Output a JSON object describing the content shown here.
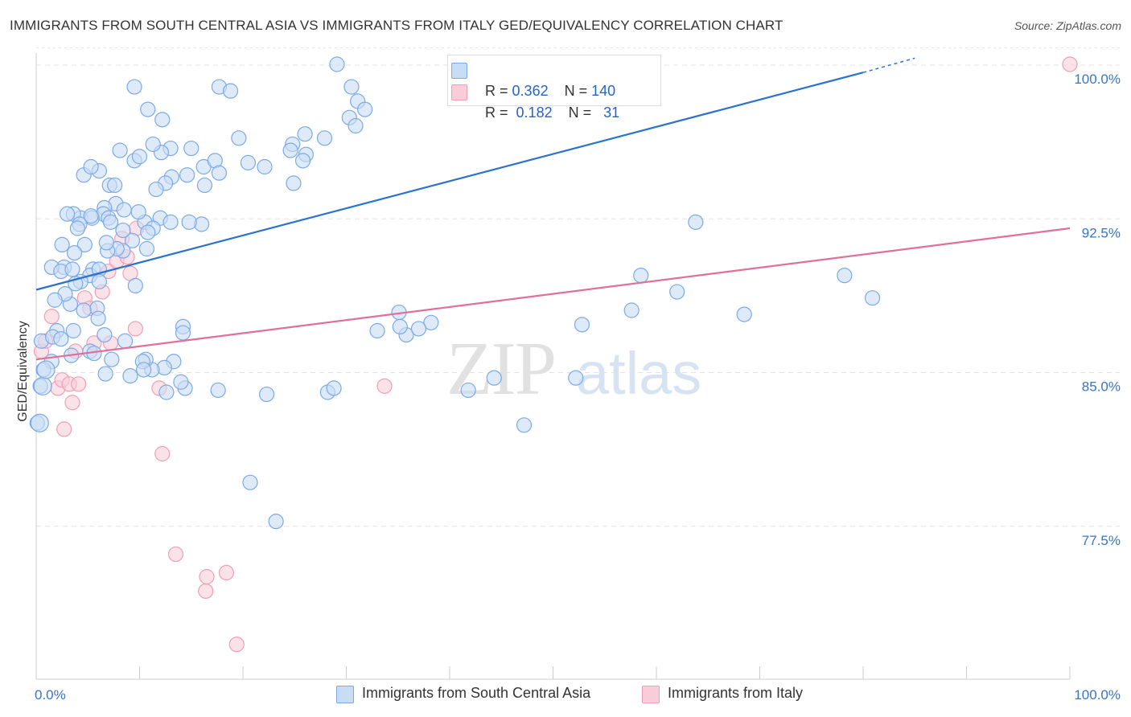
{
  "title": "IMMIGRANTS FROM SOUTH CENTRAL ASIA VS IMMIGRANTS FROM ITALY GED/EQUIVALENCY CORRELATION CHART",
  "source": "Source: ZipAtlas.com",
  "colors": {
    "blue_fill": "#c9dcf5",
    "blue_stroke": "#7aaae6",
    "blue_line": "#2a72cf",
    "pink_fill": "#f8cdd9",
    "pink_stroke": "#ee9fb6",
    "pink_line": "#e0709a",
    "axis_text": "#3a73c6",
    "grid": "#e3e3e3"
  },
  "legend": {
    "row1": {
      "r_label": "R =",
      "r_value": "0.362",
      "n_label": "N =",
      "n_value": "140"
    },
    "row2": {
      "r_label": "R =",
      "r_value": "0.182",
      "n_label": "N =",
      "n_value": "31"
    }
  },
  "bottom_legend": {
    "series1": "Immigrants from South Central Asia",
    "series2": "Immigrants from Italy"
  },
  "chart_data": {
    "type": "scatter",
    "xlabel": "",
    "ylabel": "GED/Equivalency",
    "xlim": [
      0,
      100
    ],
    "ylim": [
      71.5,
      100.8
    ],
    "x_tick_labels": [
      "0.0%",
      "100.0%"
    ],
    "y_ticks": [
      77.5,
      85.0,
      92.5,
      100.0
    ],
    "y_tick_labels": [
      "77.5%",
      "85.0%",
      "92.5%",
      "100.0%"
    ],
    "grid": true,
    "legend_position": "top-center",
    "watermark": "ZIPatlas",
    "series": [
      {
        "name": "Immigrants from South Central Asia",
        "R": 0.362,
        "N": 140,
        "trend": {
          "x": [
            0,
            80
          ],
          "y": [
            89.0,
            99.6
          ],
          "dashed_to": {
            "x": 85,
            "y": 100.3
          }
        },
        "points": [
          [
            29.1,
            100.0
          ],
          [
            30.5,
            98.9
          ],
          [
            31.1,
            98.2
          ],
          [
            31.8,
            97.8
          ],
          [
            30.3,
            97.4
          ],
          [
            30.9,
            97.0
          ],
          [
            26.0,
            96.6
          ],
          [
            27.9,
            96.4
          ],
          [
            24.8,
            96.1
          ],
          [
            26.1,
            95.6
          ],
          [
            25.8,
            95.3
          ],
          [
            17.7,
            98.9
          ],
          [
            18.8,
            98.7
          ],
          [
            19.6,
            96.4
          ],
          [
            20.5,
            95.2
          ],
          [
            22.1,
            95.0
          ],
          [
            24.6,
            95.8
          ],
          [
            24.9,
            94.2
          ],
          [
            9.5,
            98.9
          ],
          [
            10.8,
            97.8
          ],
          [
            12.2,
            97.3
          ],
          [
            13.0,
            95.9
          ],
          [
            12.1,
            95.7
          ],
          [
            15.0,
            95.9
          ],
          [
            14.6,
            94.6
          ],
          [
            16.2,
            95.0
          ],
          [
            17.3,
            95.3
          ],
          [
            17.7,
            94.7
          ],
          [
            16.3,
            94.1
          ],
          [
            16.0,
            92.2
          ],
          [
            8.1,
            95.8
          ],
          [
            9.5,
            95.3
          ],
          [
            10.0,
            95.5
          ],
          [
            11.3,
            96.1
          ],
          [
            13.1,
            94.5
          ],
          [
            12.5,
            94.2
          ],
          [
            11.6,
            93.9
          ],
          [
            12.0,
            92.5
          ],
          [
            10.5,
            92.3
          ],
          [
            11.3,
            92.0
          ],
          [
            10.8,
            91.8
          ],
          [
            13.0,
            92.3
          ],
          [
            14.8,
            92.3
          ],
          [
            7.1,
            94.1
          ],
          [
            7.6,
            94.1
          ],
          [
            6.1,
            94.8
          ],
          [
            4.6,
            94.6
          ],
          [
            5.3,
            95.0
          ],
          [
            7.7,
            93.2
          ],
          [
            6.6,
            93.0
          ],
          [
            6.5,
            92.7
          ],
          [
            7.0,
            92.5
          ],
          [
            7.2,
            92.3
          ],
          [
            8.5,
            92.9
          ],
          [
            9.9,
            92.8
          ],
          [
            4.3,
            92.5
          ],
          [
            5.4,
            92.5
          ],
          [
            5.3,
            92.6
          ],
          [
            3.6,
            92.7
          ],
          [
            3.0,
            92.7
          ],
          [
            4.2,
            92.2
          ],
          [
            4.0,
            92.0
          ],
          [
            9.3,
            91.4
          ],
          [
            10.7,
            91.0
          ],
          [
            8.4,
            90.9
          ],
          [
            7.8,
            91.0
          ],
          [
            5.5,
            90.0
          ],
          [
            6.9,
            90.9
          ],
          [
            4.7,
            91.2
          ],
          [
            5.2,
            89.7
          ],
          [
            2.7,
            90.1
          ],
          [
            6.1,
            90.0
          ],
          [
            6.1,
            89.4
          ],
          [
            8.4,
            91.9
          ],
          [
            6.8,
            91.3
          ],
          [
            4.3,
            89.4
          ],
          [
            3.8,
            89.3
          ],
          [
            5.2,
            86.0
          ],
          [
            5.6,
            85.9
          ],
          [
            6.7,
            84.9
          ],
          [
            5.9,
            88.1
          ],
          [
            4.6,
            88.0
          ],
          [
            3.3,
            88.3
          ],
          [
            2.8,
            88.8
          ],
          [
            2.0,
            87.0
          ],
          [
            0.5,
            86.5
          ],
          [
            1.6,
            86.7
          ],
          [
            1.8,
            88.5
          ],
          [
            1.5,
            90.1
          ],
          [
            2.5,
            91.2
          ],
          [
            2.4,
            89.9
          ],
          [
            3.5,
            90.0
          ],
          [
            3.7,
            90.8
          ],
          [
            6.0,
            87.6
          ],
          [
            3.6,
            87.0
          ],
          [
            2.4,
            86.6
          ],
          [
            1.5,
            85.5
          ],
          [
            0.7,
            85.1
          ],
          [
            0.4,
            84.3
          ],
          [
            0.1,
            82.5
          ],
          [
            3.4,
            85.8
          ],
          [
            6.6,
            86.8
          ],
          [
            7.3,
            85.6
          ],
          [
            8.6,
            86.5
          ],
          [
            9.6,
            89.2
          ],
          [
            12.6,
            84.0
          ],
          [
            14.4,
            84.2
          ],
          [
            14.0,
            84.5
          ],
          [
            17.6,
            84.1
          ],
          [
            22.3,
            83.9
          ],
          [
            28.2,
            84.0
          ],
          [
            28.8,
            84.2
          ],
          [
            14.2,
            87.2
          ],
          [
            14.2,
            86.9
          ],
          [
            13.3,
            85.5
          ],
          [
            12.4,
            85.2
          ],
          [
            11.2,
            85.1
          ],
          [
            10.6,
            85.6
          ],
          [
            10.3,
            85.5
          ],
          [
            10.4,
            85.1
          ],
          [
            9.1,
            84.8
          ],
          [
            35.1,
            87.9
          ],
          [
            35.8,
            86.8
          ],
          [
            33.0,
            87.0
          ],
          [
            35.2,
            87.2
          ],
          [
            38.2,
            87.4
          ],
          [
            37.0,
            87.1
          ],
          [
            41.8,
            84.1
          ],
          [
            44.3,
            84.7
          ],
          [
            47.2,
            82.4
          ],
          [
            52.2,
            84.7
          ],
          [
            52.8,
            87.3
          ],
          [
            57.6,
            88.0
          ],
          [
            58.5,
            89.7
          ],
          [
            62.0,
            88.9
          ],
          [
            63.8,
            92.3
          ],
          [
            68.5,
            87.8
          ],
          [
            20.7,
            79.6
          ],
          [
            23.2,
            77.7
          ],
          [
            78.2,
            89.7
          ],
          [
            80.9,
            88.6
          ]
        ]
      },
      {
        "name": "Immigrants from Italy",
        "R": 0.182,
        "N": 31,
        "trend": {
          "x": [
            0,
            100
          ],
          "y": [
            85.6,
            92.0
          ]
        },
        "points": [
          [
            0.5,
            86.0
          ],
          [
            0.9,
            86.5
          ],
          [
            1.5,
            87.7
          ],
          [
            2.1,
            84.2
          ],
          [
            2.5,
            84.6
          ],
          [
            2.7,
            82.2
          ],
          [
            3.2,
            84.4
          ],
          [
            3.5,
            83.5
          ],
          [
            3.8,
            86.0
          ],
          [
            4.1,
            84.4
          ],
          [
            4.7,
            88.6
          ],
          [
            5.2,
            88.1
          ],
          [
            5.6,
            86.4
          ],
          [
            6.4,
            88.9
          ],
          [
            7.0,
            89.9
          ],
          [
            7.2,
            86.4
          ],
          [
            7.8,
            90.4
          ],
          [
            8.3,
            91.5
          ],
          [
            8.8,
            90.6
          ],
          [
            9.1,
            89.8
          ],
          [
            9.6,
            87.1
          ],
          [
            9.7,
            92.0
          ],
          [
            11.9,
            84.2
          ],
          [
            12.2,
            81.0
          ],
          [
            13.5,
            76.1
          ],
          [
            16.4,
            74.3
          ],
          [
            16.5,
            75.0
          ],
          [
            18.4,
            75.2
          ],
          [
            19.4,
            71.7
          ],
          [
            33.7,
            84.3
          ],
          [
            100.0,
            100.0
          ]
        ]
      }
    ]
  }
}
